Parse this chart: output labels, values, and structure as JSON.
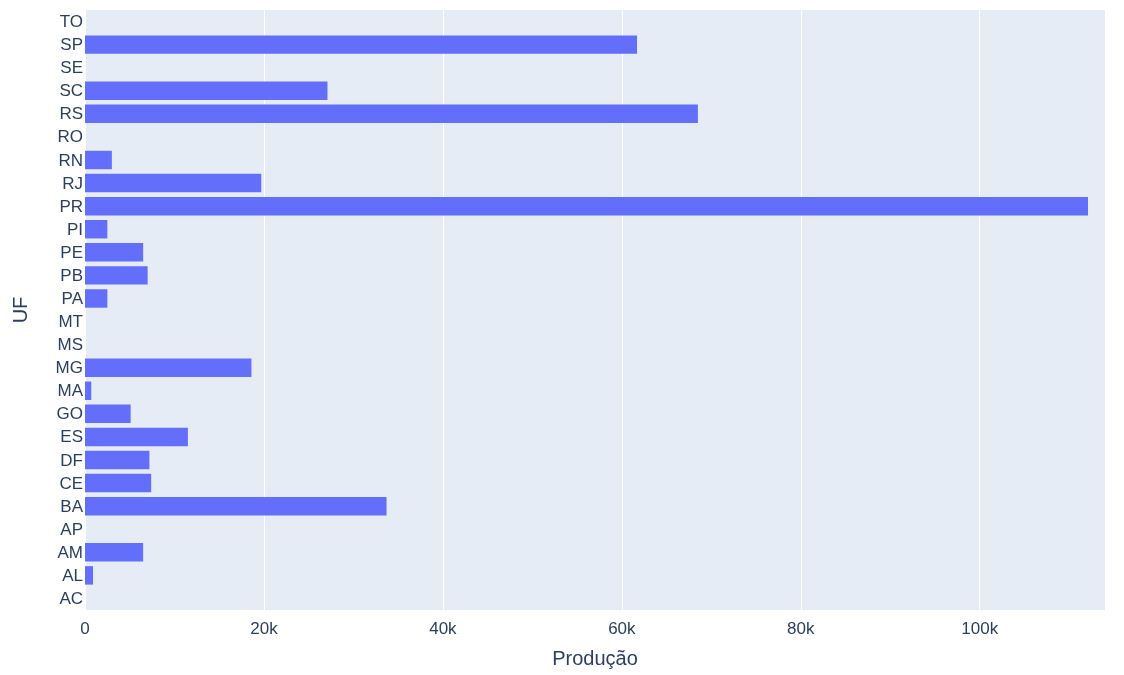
{
  "chart_data": {
    "type": "bar",
    "orientation": "horizontal",
    "xlabel": "Produção",
    "ylabel": "UF",
    "categories": [
      "TO",
      "SP",
      "SE",
      "SC",
      "RS",
      "RO",
      "RN",
      "RJ",
      "PR",
      "PI",
      "PE",
      "PB",
      "PA",
      "MT",
      "MS",
      "MG",
      "MA",
      "GO",
      "ES",
      "DF",
      "CE",
      "BA",
      "AP",
      "AM",
      "AL",
      "AC"
    ],
    "values": [
      0,
      61700,
      0,
      27100,
      68500,
      0,
      3000,
      19700,
      112100,
      2500,
      6500,
      7000,
      2500,
      0,
      0,
      18600,
      700,
      5100,
      11500,
      7200,
      7400,
      33700,
      0,
      6500,
      900,
      0
    ],
    "color": "#636efa",
    "xlim": [
      0,
      114000
    ],
    "xticks": [
      0,
      {
        "value": 20000,
        "label": "20k"
      },
      {
        "value": 40000,
        "label": "40k"
      },
      {
        "value": 60000,
        "label": "60k"
      },
      {
        "value": 80000,
        "label": "80k"
      },
      {
        "value": 100000,
        "label": "100k"
      }
    ],
    "grid": "x"
  }
}
